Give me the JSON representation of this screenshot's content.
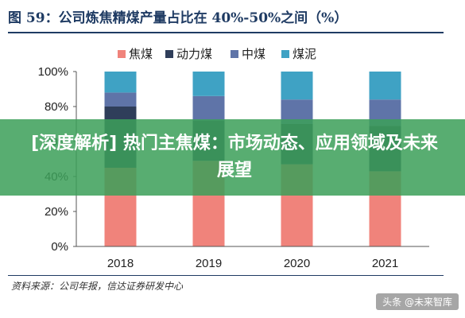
{
  "figure": {
    "title": "图 59：公司炼焦精煤产量占比在 40%-50%之间（%）",
    "source": "资料来源：公司年报，信达证券研发中心"
  },
  "overlay": {
    "headline": "[深度解析] 热门主焦煤：市场动态、应用领域及未来展望"
  },
  "watermark": {
    "text": "头条 @未来智库"
  },
  "chart_data": {
    "type": "bar",
    "stacked": true,
    "categories": [
      "2018",
      "2019",
      "2020",
      "2021"
    ],
    "series": [
      {
        "name": "焦煤",
        "color": "#f0837b",
        "values": [
          45,
          49,
          47,
          43
        ]
      },
      {
        "name": "动力煤",
        "color": "#2f3e5a",
        "values": [
          35,
          23,
          23,
          26
        ]
      },
      {
        "name": "中煤",
        "color": "#5f74a8",
        "values": [
          8,
          14,
          14,
          15
        ]
      },
      {
        "name": "煤泥",
        "color": "#3fa2c4",
        "values": [
          12,
          14,
          16,
          16
        ]
      }
    ],
    "yticks": [
      "0%",
      "20%",
      "40%",
      "60%",
      "80%",
      "100%"
    ],
    "ylim": [
      0,
      100
    ],
    "legend_position": "top",
    "grid": false
  }
}
